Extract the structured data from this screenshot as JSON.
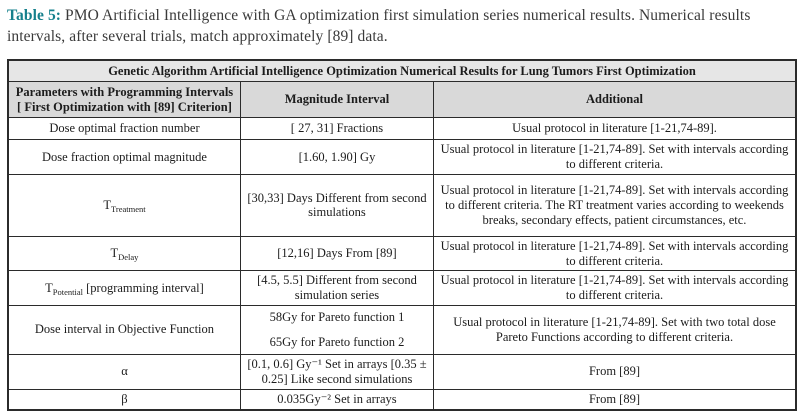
{
  "caption": {
    "label": "Table 5:",
    "text": " PMO Artificial Intelligence with GA optimization first simulation series numerical results. Numerical results intervals, after several trials, match approximately [89] data."
  },
  "colors": {
    "caption_label": "#16808C",
    "title_row_bg": "#e6e6e6",
    "header_row_bg": "#d9d9d9",
    "border": "#2b2b2b"
  },
  "table": {
    "title": "Genetic Algorithm Artificial Intelligence Optimization Numerical Results for Lung Tumors First Optimization",
    "columns": {
      "parameters": "Parameters with Programming Intervals [ First Optimization with [89] Criterion]",
      "magnitude": "Magnitude Interval",
      "additional": "Additional"
    },
    "rows": [
      {
        "param": "Dose optimal fraction number",
        "magnitude": "[ 27, 31] Fractions",
        "additional": "Usual protocol in literature [1-21,74-89]."
      },
      {
        "param": "Dose fraction optimal magnitude",
        "magnitude": "[1.60, 1.90] Gy",
        "additional": "Usual protocol in literature [1-21,74-89]. Set with intervals according to different criteria."
      },
      {
        "param_base": "T",
        "param_sub": "Treatment",
        "magnitude": "[30,33] Days Different from second simulations",
        "additional": "Usual protocol in literature [1-21,74-89]. Set with intervals according to different criteria. The RT treatment varies according to weekends breaks, secondary effects, patient circumstances, etc."
      },
      {
        "param_base": "T",
        "param_sub": "Delay",
        "magnitude": "[12,16] Days From [89]",
        "additional": "Usual protocol in literature [1-21,74-89]. Set with intervals according to different criteria."
      },
      {
        "param_base": "T",
        "param_sub": "Potential",
        "param_suffix": " [programming interval]",
        "magnitude": "[4.5, 5.5] Different from second simulation series",
        "additional": "Usual protocol in literature [1-21,74-89]. Set with intervals according to different criteria."
      },
      {
        "param": "Dose interval in Objective Function",
        "magnitude_line1": "58Gy for Pareto function 1",
        "magnitude_line2": "65Gy for Pareto function 2",
        "additional": "Usual protocol in literature [1-21,74-89]. Set with two total dose Pareto Functions according to different criteria."
      },
      {
        "param": "α",
        "magnitude": "[0.1, 0.6] Gy⁻¹ Set in arrays [0.35 ± 0.25] Like second simulations",
        "additional": "From [89]"
      },
      {
        "param": "β",
        "magnitude": "0.035Gy⁻² Set in arrays",
        "additional": "From [89]"
      }
    ]
  }
}
